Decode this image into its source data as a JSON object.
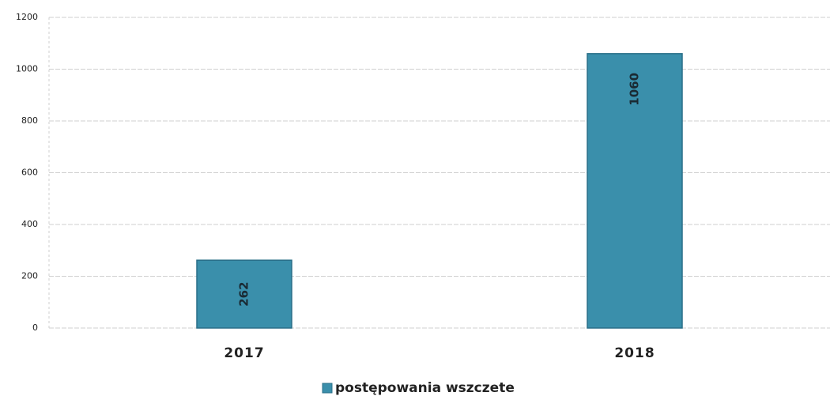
{
  "chart_data": {
    "type": "bar",
    "categories": [
      "2017",
      "2018"
    ],
    "series": [
      {
        "name": "postępowania wszczete",
        "color": "#3a8fab",
        "values": [
          262,
          1060
        ]
      }
    ],
    "ylim": [
      0,
      1200
    ],
    "yticks": [
      0,
      200,
      400,
      600,
      800,
      1000,
      1200
    ],
    "grid": true,
    "legend": "bottom"
  }
}
